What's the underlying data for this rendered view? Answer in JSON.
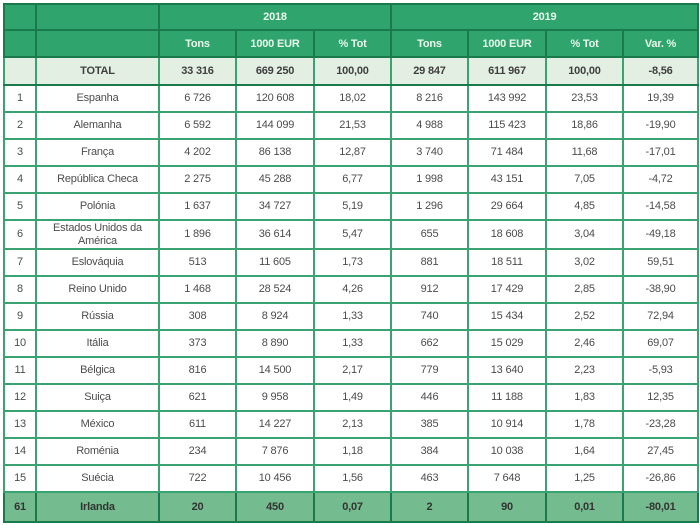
{
  "table": {
    "year_2018": "2018",
    "year_2019": "2019",
    "columns": [
      "Tons",
      "1000 EUR",
      "% Tot",
      "Tons",
      "1000 EUR",
      "% Tot",
      "Var. %"
    ],
    "total_row": {
      "rank": "",
      "country": "TOTAL",
      "values": [
        "33 316",
        "669 250",
        "100,00",
        "29 847",
        "611 967",
        "100,00",
        "-8,56"
      ]
    },
    "rows": [
      {
        "rank": "1",
        "country": "Espanha",
        "values": [
          "6 726",
          "120 608",
          "18,02",
          "8 216",
          "143 992",
          "23,53",
          "19,39"
        ]
      },
      {
        "rank": "2",
        "country": "Alemanha",
        "values": [
          "6 592",
          "144 099",
          "21,53",
          "4 988",
          "115 423",
          "18,86",
          "-19,90"
        ]
      },
      {
        "rank": "3",
        "country": "França",
        "values": [
          "4 202",
          "86 138",
          "12,87",
          "3 740",
          "71 484",
          "11,68",
          "-17,01"
        ]
      },
      {
        "rank": "4",
        "country": "República Checa",
        "values": [
          "2 275",
          "45 288",
          "6,77",
          "1 998",
          "43 151",
          "7,05",
          "-4,72"
        ]
      },
      {
        "rank": "5",
        "country": "Polónia",
        "values": [
          "1 637",
          "34 727",
          "5,19",
          "1 296",
          "29 664",
          "4,85",
          "-14,58"
        ]
      },
      {
        "rank": "6",
        "country": "Estados Unidos da América",
        "values": [
          "1 896",
          "36 614",
          "5,47",
          "655",
          "18 608",
          "3,04",
          "-49,18"
        ]
      },
      {
        "rank": "7",
        "country": "Eslováquia",
        "values": [
          "513",
          "11 605",
          "1,73",
          "881",
          "18 511",
          "3,02",
          "59,51"
        ]
      },
      {
        "rank": "8",
        "country": "Reino Unido",
        "values": [
          "1 468",
          "28 524",
          "4,26",
          "912",
          "17 429",
          "2,85",
          "-38,90"
        ]
      },
      {
        "rank": "9",
        "country": "Rússia",
        "values": [
          "308",
          "8 924",
          "1,33",
          "740",
          "15 434",
          "2,52",
          "72,94"
        ]
      },
      {
        "rank": "10",
        "country": "Itália",
        "values": [
          "373",
          "8 890",
          "1,33",
          "662",
          "15 029",
          "2,46",
          "69,07"
        ]
      },
      {
        "rank": "11",
        "country": "Bélgica",
        "values": [
          "816",
          "14 500",
          "2,17",
          "779",
          "13 640",
          "2,23",
          "-5,93"
        ]
      },
      {
        "rank": "12",
        "country": "Suiça",
        "values": [
          "621",
          "9 958",
          "1,49",
          "446",
          "11 188",
          "1,83",
          "12,35"
        ]
      },
      {
        "rank": "13",
        "country": "México",
        "values": [
          "611",
          "14 227",
          "2,13",
          "385",
          "10 914",
          "1,78",
          "-23,28"
        ]
      },
      {
        "rank": "14",
        "country": "Roménia",
        "values": [
          "234",
          "7 876",
          "1,18",
          "384",
          "10 038",
          "1,64",
          "27,45"
        ]
      },
      {
        "rank": "15",
        "country": "Suécia",
        "values": [
          "722",
          "10 456",
          "1,56",
          "463",
          "7 648",
          "1,25",
          "-26,86"
        ]
      }
    ],
    "footer_row": {
      "rank": "61",
      "country": "Irlanda",
      "values": [
        "20",
        "450",
        "0,07",
        "2",
        "90",
        "0,01",
        "-80,01"
      ]
    }
  },
  "colors": {
    "header_green": "#2fa46c",
    "dark_border_green": "#1b7a4b",
    "body_border_green": "#3aa372",
    "total_row_bg": "#e4efe3",
    "footer_row_bg": "#74bc90",
    "header_text": "#eaf7ee",
    "body_text": "#4c4c4c"
  }
}
